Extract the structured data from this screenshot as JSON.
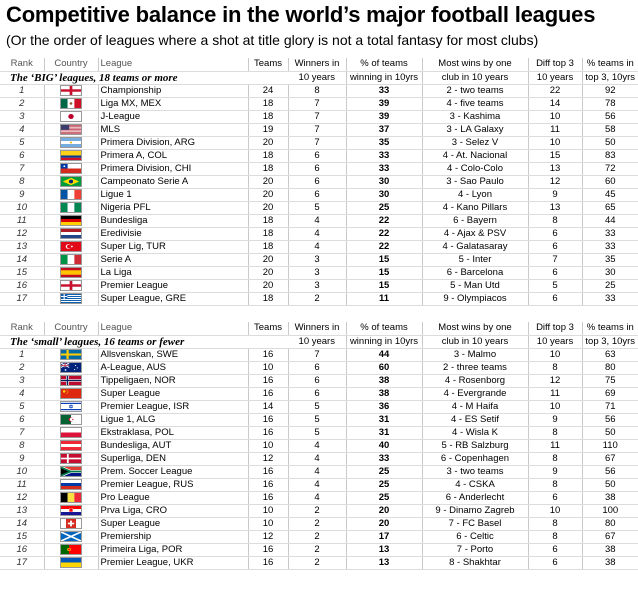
{
  "title": "Competitive balance in the world’s major football leagues",
  "subtitle": "(Or the order of leagues where a shot at title glory is not a total fantasy for most clubs)",
  "columns_top": {
    "rank": "Rank",
    "country": "Country",
    "league": "League",
    "teams": "Teams",
    "winners": "Winners in",
    "pct": "% of teams",
    "most": "Most wins by one",
    "diff": "Diff top 3",
    "top3": "% teams in"
  },
  "columns_bottom": {
    "winners": "10 years",
    "pct": "winning in 10yrs",
    "most": "club in 10 years",
    "diff": "10 years",
    "top3": "top 3, 10yrs"
  },
  "section_big": "The ‘BIG’ leagues, 18 teams or more",
  "section_small": "The ‘small’ leagues, 16 teams or fewer",
  "big": [
    {
      "rank": "1",
      "flag": "england",
      "league": "Championship",
      "teams": "24",
      "winners": "8",
      "pct": "33",
      "most": "2 - two teams",
      "diff": "22",
      "top3": "92"
    },
    {
      "rank": "2",
      "flag": "mexico",
      "league": "Liga MX, MEX",
      "teams": "18",
      "winners": "7",
      "pct": "39",
      "most": "4 - five teams",
      "diff": "14",
      "top3": "78"
    },
    {
      "rank": "3",
      "flag": "japan",
      "league": "J-League",
      "teams": "18",
      "winners": "7",
      "pct": "39",
      "most": "3 - Kashima",
      "diff": "10",
      "top3": "56"
    },
    {
      "rank": "4",
      "flag": "usa",
      "league": "MLS",
      "teams": "19",
      "winners": "7",
      "pct": "37",
      "most": "3 - LA Galaxy",
      "diff": "11",
      "top3": "58"
    },
    {
      "rank": "5",
      "flag": "argentina",
      "league": "Primera Division, ARG",
      "teams": "20",
      "winners": "7",
      "pct": "35",
      "most": "3 - Selez V",
      "diff": "10",
      "top3": "50"
    },
    {
      "rank": "6",
      "flag": "colombia",
      "league": "Primera A, COL",
      "teams": "18",
      "winners": "6",
      "pct": "33",
      "most": "4 - At. Nacional",
      "diff": "15",
      "top3": "83"
    },
    {
      "rank": "7",
      "flag": "chile",
      "league": "Primera Division, CHI",
      "teams": "18",
      "winners": "6",
      "pct": "33",
      "most": "4 - Colo-Colo",
      "diff": "13",
      "top3": "72"
    },
    {
      "rank": "8",
      "flag": "brazil",
      "league": "Campeonato Serie A",
      "teams": "20",
      "winners": "6",
      "pct": "30",
      "most": "3 - Sao Paulo",
      "diff": "12",
      "top3": "60"
    },
    {
      "rank": "9",
      "flag": "france",
      "league": "Ligue 1",
      "teams": "20",
      "winners": "6",
      "pct": "30",
      "most": "4 - Lyon",
      "diff": "9",
      "top3": "45"
    },
    {
      "rank": "10",
      "flag": "nigeria",
      "league": "Nigeria PFL",
      "teams": "20",
      "winners": "5",
      "pct": "25",
      "most": "4 - Kano Pillars",
      "diff": "13",
      "top3": "65"
    },
    {
      "rank": "11",
      "flag": "germany",
      "league": "Bundesliga",
      "teams": "18",
      "winners": "4",
      "pct": "22",
      "most": "6 - Bayern",
      "diff": "8",
      "top3": "44"
    },
    {
      "rank": "12",
      "flag": "netherlands",
      "league": "Eredivisie",
      "teams": "18",
      "winners": "4",
      "pct": "22",
      "most": "4 - Ajax & PSV",
      "diff": "6",
      "top3": "33"
    },
    {
      "rank": "13",
      "flag": "turkey",
      "league": "Super Lig, TUR",
      "teams": "18",
      "winners": "4",
      "pct": "22",
      "most": "4 - Galatasaray",
      "diff": "6",
      "top3": "33"
    },
    {
      "rank": "14",
      "flag": "italy",
      "league": "Serie A",
      "teams": "20",
      "winners": "3",
      "pct": "15",
      "most": "5 - Inter",
      "diff": "7",
      "top3": "35"
    },
    {
      "rank": "15",
      "flag": "spain",
      "league": "La Liga",
      "teams": "20",
      "winners": "3",
      "pct": "15",
      "most": "6 - Barcelona",
      "diff": "6",
      "top3": "30"
    },
    {
      "rank": "16",
      "flag": "england",
      "league": "Premier League",
      "teams": "20",
      "winners": "3",
      "pct": "15",
      "most": "5 - Man Utd",
      "diff": "5",
      "top3": "25"
    },
    {
      "rank": "17",
      "flag": "greece",
      "league": "Super League, GRE",
      "teams": "18",
      "winners": "2",
      "pct": "11",
      "most": "9 - Olympiacos",
      "diff": "6",
      "top3": "33"
    }
  ],
  "small": [
    {
      "rank": "1",
      "flag": "sweden",
      "league": "Allsvenskan, SWE",
      "teams": "16",
      "winners": "7",
      "pct": "44",
      "most": "3 - Malmo",
      "diff": "10",
      "top3": "63"
    },
    {
      "rank": "2",
      "flag": "australia",
      "league": "A-League, AUS",
      "teams": "10",
      "winners": "6",
      "pct": "60",
      "most": "2 - three teams",
      "diff": "8",
      "top3": "80"
    },
    {
      "rank": "3",
      "flag": "norway",
      "league": "Tippeligaen, NOR",
      "teams": "16",
      "winners": "6",
      "pct": "38",
      "most": "4 - Rosenborg",
      "diff": "12",
      "top3": "75"
    },
    {
      "rank": "4",
      "flag": "china",
      "league": "Super League",
      "teams": "16",
      "winners": "6",
      "pct": "38",
      "most": "4 - Evergrande",
      "diff": "11",
      "top3": "69"
    },
    {
      "rank": "5",
      "flag": "israel",
      "league": "Premier League, ISR",
      "teams": "14",
      "winners": "5",
      "pct": "36",
      "most": "4 - M Haifa",
      "diff": "10",
      "top3": "71"
    },
    {
      "rank": "6",
      "flag": "algeria",
      "league": "Ligue 1, ALG",
      "teams": "16",
      "winners": "5",
      "pct": "31",
      "most": "4 - ES Setif",
      "diff": "9",
      "top3": "56"
    },
    {
      "rank": "7",
      "flag": "poland",
      "league": "Ekstraklasa, POL",
      "teams": "16",
      "winners": "5",
      "pct": "31",
      "most": "4 - Wisla K",
      "diff": "8",
      "top3": "50"
    },
    {
      "rank": "8",
      "flag": "austria",
      "league": "Bundesliga, AUT",
      "teams": "10",
      "winners": "4",
      "pct": "40",
      "most": "5 - RB Salzburg",
      "diff": "11",
      "top3": "110"
    },
    {
      "rank": "9",
      "flag": "denmark",
      "league": "Superliga, DEN",
      "teams": "12",
      "winners": "4",
      "pct": "33",
      "most": "6 - Copenhagen",
      "diff": "8",
      "top3": "67"
    },
    {
      "rank": "10",
      "flag": "southafrica",
      "league": "Prem. Soccer League",
      "teams": "16",
      "winners": "4",
      "pct": "25",
      "most": "3 - two teams",
      "diff": "9",
      "top3": "56"
    },
    {
      "rank": "11",
      "flag": "russia",
      "league": "Premier League, RUS",
      "teams": "16",
      "winners": "4",
      "pct": "25",
      "most": "4 - CSKA",
      "diff": "8",
      "top3": "50"
    },
    {
      "rank": "12",
      "flag": "belgium",
      "league": "Pro League",
      "teams": "16",
      "winners": "4",
      "pct": "25",
      "most": "6 - Anderlecht",
      "diff": "6",
      "top3": "38"
    },
    {
      "rank": "13",
      "flag": "croatia",
      "league": "Prva Liga, CRO",
      "teams": "10",
      "winners": "2",
      "pct": "20",
      "most": "9 - Dinamo Zagreb",
      "diff": "10",
      "top3": "100"
    },
    {
      "rank": "14",
      "flag": "switzerland",
      "league": "Super League",
      "teams": "10",
      "winners": "2",
      "pct": "20",
      "most": "7 - FC Basel",
      "diff": "8",
      "top3": "80"
    },
    {
      "rank": "15",
      "flag": "scotland",
      "league": "Premiership",
      "teams": "12",
      "winners": "2",
      "pct": "17",
      "most": "6 - Celtic",
      "diff": "8",
      "top3": "67"
    },
    {
      "rank": "16",
      "flag": "portugal",
      "league": "Primeira Liga, POR",
      "teams": "16",
      "winners": "2",
      "pct": "13",
      "most": "7 - Porto",
      "diff": "6",
      "top3": "38"
    },
    {
      "rank": "17",
      "flag": "ukraine",
      "league": "Premier League, UKR",
      "teams": "16",
      "winners": "2",
      "pct": "13",
      "most": "8 - Shakhtar",
      "diff": "6",
      "top3": "38"
    }
  ]
}
